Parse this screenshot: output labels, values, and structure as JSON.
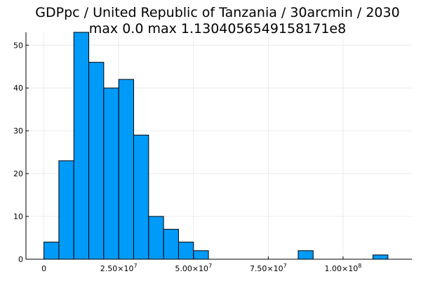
{
  "chart_data": {
    "type": "bar",
    "title": "GDPpc / United Republic of Tanzania / 30arcmin / 2030",
    "subtitle": "max 0.0  max 1.1304056549158171e8",
    "xlabel": "",
    "ylabel": "",
    "xlim": [
      -6000000,
      123000000
    ],
    "ylim": [
      0,
      53
    ],
    "bin_width": 5000000,
    "bins": [
      {
        "x0": 0,
        "x1": 5000000,
        "count": 4
      },
      {
        "x0": 5000000,
        "x1": 10000000,
        "count": 23
      },
      {
        "x0": 10000000,
        "x1": 15000000,
        "count": 53
      },
      {
        "x0": 15000000,
        "x1": 20000000,
        "count": 46
      },
      {
        "x0": 20000000,
        "x1": 25000000,
        "count": 40
      },
      {
        "x0": 25000000,
        "x1": 30000000,
        "count": 42
      },
      {
        "x0": 30000000,
        "x1": 35000000,
        "count": 29
      },
      {
        "x0": 35000000,
        "x1": 40000000,
        "count": 10
      },
      {
        "x0": 40000000,
        "x1": 45000000,
        "count": 7
      },
      {
        "x0": 45000000,
        "x1": 50000000,
        "count": 4
      },
      {
        "x0": 50000000,
        "x1": 55000000,
        "count": 2
      },
      {
        "x0": 85000000,
        "x1": 90000000,
        "count": 2
      },
      {
        "x0": 110000000,
        "x1": 115000000,
        "count": 1
      }
    ],
    "xticks": [
      {
        "value": 0,
        "mantissa": "0",
        "exp": ""
      },
      {
        "value": 25000000,
        "mantissa": "2.50×10",
        "exp": "7"
      },
      {
        "value": 50000000,
        "mantissa": "5.00×10",
        "exp": "7"
      },
      {
        "value": 75000000,
        "mantissa": "7.50×10",
        "exp": "7"
      },
      {
        "value": 100000000,
        "mantissa": "1.00×10",
        "exp": "8"
      }
    ],
    "yticks": [
      0,
      10,
      20,
      30,
      40,
      50
    ],
    "bar_color": "#009af9",
    "grid": true,
    "legend": "none"
  }
}
